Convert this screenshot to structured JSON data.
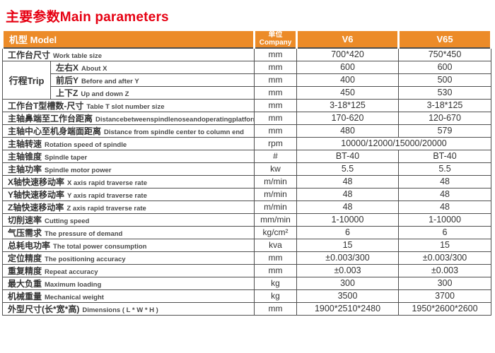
{
  "title": "主要参数Main parameters",
  "colors": {
    "header_bg": "#ec8b28",
    "title_red": "#e60012",
    "border": "#4f4f4f",
    "header_text": "#ffffff",
    "body_text": "#3a3a3a"
  },
  "header": {
    "model": "机型 Model",
    "unit_zh": "单位",
    "unit_en": "Company",
    "v6": "V6",
    "v65": "V65"
  },
  "rows": [
    {
      "zh": "工作台尺寸",
      "en": "Work table size",
      "unit": "mm",
      "v6": "700*420",
      "v65": "750*450"
    },
    {
      "group": "行程Trip",
      "group_span": 3,
      "zh": "左右X",
      "en": "About X",
      "unit": "mm",
      "v6": "600",
      "v65": "600"
    },
    {
      "in_group": true,
      "zh": "前后Y",
      "en": "Before and after Y",
      "unit": "mm",
      "v6": "400",
      "v65": "500"
    },
    {
      "in_group": true,
      "zh": "上下Z",
      "en": "Up and down Z",
      "unit": "mm",
      "v6": "450",
      "v65": "530"
    },
    {
      "zh": "工作台T型槽数-尺寸",
      "en": "Table T slot number size",
      "unit": "mm",
      "v6": "3-18*125",
      "v65": "3-18*125"
    },
    {
      "zh": "主轴鼻端至工作台距离",
      "en": "Distancebetweenspindlenoseandoperatingplatform",
      "unit": "mm",
      "v6": "170-620",
      "v65": "120-670"
    },
    {
      "zh": "主轴中心至机身端面距离",
      "en": "Distance from spindle center to column end",
      "unit": "mm",
      "v6": "480",
      "v65": "579"
    },
    {
      "zh": "主轴转速",
      "en": "Rotation speed of spindle",
      "unit": "rpm",
      "merged": "10000/12000/15000/20000"
    },
    {
      "zh": "主轴锥度",
      "en": "Spindle taper",
      "unit": "#",
      "v6": "BT-40",
      "v65": "BT-40"
    },
    {
      "zh": "主轴功率",
      "en": "Spindle motor power",
      "unit": "kw",
      "v6": "5.5",
      "v65": "5.5"
    },
    {
      "zh": "X轴快速移动率",
      "en": "X axis rapid traverse rate",
      "unit": "m/min",
      "v6": "48",
      "v65": "48"
    },
    {
      "zh": "Y轴快速移动率",
      "en": "Y axis rapid traverse rate",
      "unit": "m/min",
      "v6": "48",
      "v65": "48"
    },
    {
      "zh": "Z轴快速移动率",
      "en": "Z axis rapid traverse rate",
      "unit": "m/min",
      "v6": "48",
      "v65": "48"
    },
    {
      "zh": "切削速率",
      "en": "Cutting speed",
      "unit": "mm/min",
      "v6": "1-10000",
      "v65": "1-10000"
    },
    {
      "zh": "气压需求",
      "en": "The pressure of demand",
      "unit": "kg/cm²",
      "v6": "6",
      "v65": "6"
    },
    {
      "zh": "总耗电功率",
      "en": "The total power consumption",
      "unit": "kva",
      "v6": "15",
      "v65": "15"
    },
    {
      "zh": "定位精度",
      "en": "The positioning accuracy",
      "unit": "mm",
      "v6": "±0.003/300",
      "v65": "±0.003/300"
    },
    {
      "zh": "重复精度",
      "en": "Repeat accuracy",
      "unit": "mm",
      "v6": "±0.003",
      "v65": "±0.003"
    },
    {
      "zh": "最大负重",
      "en": "Maximum loading",
      "unit": "kg",
      "v6": "300",
      "v65": "300"
    },
    {
      "zh": "机械重量",
      "en": "Mechanical weight",
      "unit": "kg",
      "v6": "3500",
      "v65": "3700"
    },
    {
      "zh": "外型尺寸(长*宽*高)",
      "en": "Dimensions ( L * W * H )",
      "unit": "mm",
      "v6": "1900*2510*2480",
      "v65": "1950*2600*2600"
    }
  ]
}
